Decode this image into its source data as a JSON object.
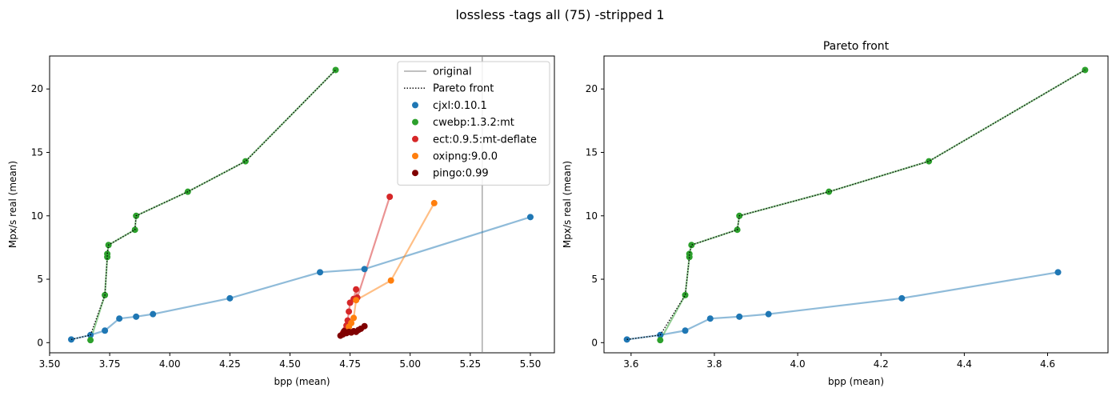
{
  "figure": {
    "title": "lossless -tags all (75) -stripped 1"
  },
  "colors": {
    "cjxl:0.10.1": "#1f77b4",
    "cwebp:1.3.2:mt": "#2ca02c",
    "ect:0.9.5:mt-deflate": "#d62728",
    "oxipng:9.0.0": "#ff7f0e",
    "pingo:0.99": "#800000",
    "original": "#808080",
    "pareto": "#000000"
  },
  "legend": {
    "placement": "top-right",
    "entries": [
      {
        "label": "original",
        "kind": "line-solid",
        "color": "#808080"
      },
      {
        "label": "Pareto front",
        "kind": "line-dotted",
        "color": "#000000"
      },
      {
        "label": "cjxl:0.10.1",
        "kind": "marker",
        "color": "#1f77b4"
      },
      {
        "label": "cwebp:1.3.2:mt",
        "kind": "marker",
        "color": "#2ca02c"
      },
      {
        "label": "ect:0.9.5:mt-deflate",
        "kind": "marker",
        "color": "#d62728"
      },
      {
        "label": "oxipng:9.0.0",
        "kind": "marker",
        "color": "#ff7f0e"
      },
      {
        "label": "pingo:0.99",
        "kind": "marker",
        "color": "#800000"
      }
    ]
  },
  "chart_data": [
    {
      "type": "scatter",
      "title": "",
      "xlabel": "bpp (mean)",
      "ylabel": "Mpx/s real (mean)",
      "xlim": [
        3.5,
        5.6
      ],
      "ylim": [
        -0.8,
        22.6
      ],
      "xticks": [
        3.5,
        3.75,
        4.0,
        4.25,
        4.5,
        4.75,
        5.0,
        5.25,
        5.5
      ],
      "xtick_labels": [
        "3.50",
        "3.75",
        "4.00",
        "4.25",
        "4.50",
        "4.75",
        "5.00",
        "5.25",
        "5.50"
      ],
      "yticks": [
        0,
        5,
        10,
        15,
        20
      ],
      "ytick_labels": [
        "0",
        "5",
        "10",
        "15",
        "20"
      ],
      "grid": false,
      "original_bpp": 5.3,
      "pareto_front": [
        [
          3.59,
          0.25
        ],
        [
          3.67,
          0.6
        ],
        [
          3.73,
          3.75
        ],
        [
          3.74,
          6.75
        ],
        [
          3.74,
          7.0
        ],
        [
          3.745,
          7.7
        ],
        [
          3.855,
          8.9
        ],
        [
          3.86,
          10.0
        ],
        [
          4.075,
          11.9
        ],
        [
          4.315,
          14.3
        ],
        [
          4.69,
          21.5
        ]
      ],
      "series": [
        {
          "name": "cjxl:0.10.1",
          "x": [
            3.59,
            3.67,
            3.73,
            3.79,
            3.86,
            3.93,
            4.25,
            4.625,
            4.81,
            5.5
          ],
          "y": [
            0.25,
            0.6,
            0.95,
            1.9,
            2.05,
            2.25,
            3.5,
            5.55,
            5.8,
            9.9
          ]
        },
        {
          "name": "cwebp:1.3.2:mt",
          "x": [
            3.67,
            3.73,
            3.74,
            3.74,
            3.745,
            3.855,
            3.86,
            4.075,
            4.315,
            4.69
          ],
          "y": [
            0.2,
            3.75,
            6.75,
            7.0,
            7.7,
            8.9,
            10.0,
            11.9,
            14.3,
            21.5
          ]
        },
        {
          "name": "ect:0.9.5:mt-deflate",
          "x": [
            4.72,
            4.73,
            4.735,
            4.74,
            4.745,
            4.75,
            4.765,
            4.775,
            4.78,
            4.915
          ],
          "y": [
            0.75,
            1.0,
            1.35,
            1.75,
            2.45,
            3.15,
            3.45,
            4.2,
            3.55,
            11.5
          ]
        },
        {
          "name": "oxipng:9.0.0",
          "x": [
            4.745,
            4.755,
            4.765,
            4.775,
            4.92,
            5.1
          ],
          "y": [
            1.25,
            1.55,
            1.95,
            3.35,
            4.9,
            11.0
          ]
        },
        {
          "name": "pingo:0.99",
          "x": [
            4.71,
            4.72,
            4.725,
            4.735,
            4.745,
            4.755,
            4.765,
            4.775,
            4.785,
            4.795,
            4.81
          ],
          "y": [
            0.55,
            0.65,
            0.9,
            0.75,
            0.85,
            0.8,
            0.9,
            0.85,
            1.0,
            1.1,
            1.3
          ]
        }
      ]
    },
    {
      "type": "scatter",
      "title": "Pareto front",
      "xlabel": "bpp (mean)",
      "ylabel": "Mpx/s real (mean)",
      "xlim": [
        3.535,
        4.745
      ],
      "ylim": [
        -0.8,
        22.6
      ],
      "xticks": [
        3.6,
        3.8,
        4.0,
        4.2,
        4.4,
        4.6
      ],
      "xtick_labels": [
        "3.6",
        "3.8",
        "4.0",
        "4.2",
        "4.4",
        "4.6"
      ],
      "yticks": [
        0,
        5,
        10,
        15,
        20
      ],
      "ytick_labels": [
        "0",
        "5",
        "10",
        "15",
        "20"
      ],
      "grid": false,
      "pareto_front": [
        [
          3.59,
          0.25
        ],
        [
          3.67,
          0.6
        ],
        [
          3.73,
          3.75
        ],
        [
          3.74,
          6.75
        ],
        [
          3.74,
          7.0
        ],
        [
          3.745,
          7.7
        ],
        [
          3.855,
          8.9
        ],
        [
          3.86,
          10.0
        ],
        [
          4.075,
          11.9
        ],
        [
          4.315,
          14.3
        ],
        [
          4.69,
          21.5
        ]
      ],
      "series": [
        {
          "name": "cjxl:0.10.1",
          "x": [
            3.59,
            3.67,
            3.73,
            3.79,
            3.86,
            3.93,
            4.25,
            4.625
          ],
          "y": [
            0.25,
            0.6,
            0.95,
            1.9,
            2.05,
            2.25,
            3.5,
            5.55
          ]
        },
        {
          "name": "cwebp:1.3.2:mt",
          "x": [
            3.67,
            3.73,
            3.74,
            3.74,
            3.745,
            3.855,
            3.86,
            4.075,
            4.315,
            4.69
          ],
          "y": [
            0.2,
            3.75,
            6.75,
            7.0,
            7.7,
            8.9,
            10.0,
            11.9,
            14.3,
            21.5
          ]
        }
      ]
    }
  ]
}
